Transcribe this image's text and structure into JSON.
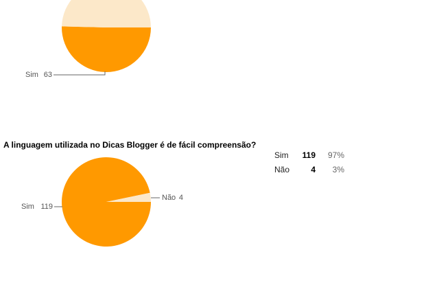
{
  "chart_data": [
    {
      "type": "pie",
      "categories": [
        "Sim",
        null
      ],
      "values": [
        63,
        62
      ],
      "colors": [
        "#ff9900",
        "#fce8c9"
      ]
    },
    {
      "type": "pie",
      "title": "A linguagem utilizada no Dicas Blogger é de fácil compreensão?",
      "categories": [
        "Sim",
        "Não"
      ],
      "values": [
        119,
        4
      ],
      "colors": [
        "#ff9900",
        "#fce8c9"
      ]
    }
  ],
  "table": {
    "rows": [
      [
        "Sim",
        "119",
        "97%"
      ],
      [
        "Não",
        "4",
        "3%"
      ]
    ]
  }
}
